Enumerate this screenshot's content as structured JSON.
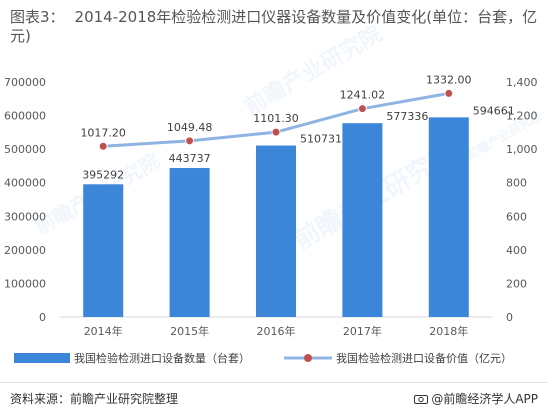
{
  "title": {
    "figure_no": "图表3：",
    "text": "2014-2018年检验检测进口仪器设备数量及价值变化(单位：台套，亿元)"
  },
  "chart_data": {
    "type": "bar",
    "categories": [
      "2014年",
      "2015年",
      "2016年",
      "2017年",
      "2018年"
    ],
    "series": [
      {
        "name": "我国检验检测进口设备数量（台套）",
        "type": "bar",
        "axis": "left",
        "color": "#3b86d8",
        "values": [
          395292,
          443737,
          510731,
          577336,
          594661
        ],
        "labels": [
          "395292",
          "443737",
          "510731",
          "577336",
          "594661"
        ]
      },
      {
        "name": "我国检验检测进口设备价值（亿元）",
        "type": "line",
        "axis": "right",
        "color": "#8fb4e3",
        "marker_color": "#c0504d",
        "values": [
          1017.2,
          1049.48,
          1101.3,
          1241.02,
          1332.0
        ],
        "labels": [
          "1017.20",
          "1049.48",
          "1101.30",
          "1241.02",
          "1332.00"
        ]
      }
    ],
    "left_axis": {
      "ylim": [
        0,
        700000
      ],
      "ticks": [
        "0",
        "100000",
        "200000",
        "300000",
        "400000",
        "500000",
        "600000",
        "700000"
      ]
    },
    "right_axis": {
      "ylim": [
        0,
        1400
      ],
      "ticks": [
        "0",
        "200",
        "400",
        "600",
        "800",
        "1,000",
        "1,200",
        "1,400"
      ]
    },
    "grid": false,
    "legend_position": "bottom",
    "watermark": "前瞻产业研究院"
  },
  "footer": {
    "source": "资料来源：前瞻产业研究院整理",
    "brand": "@前瞻经济学人APP"
  }
}
